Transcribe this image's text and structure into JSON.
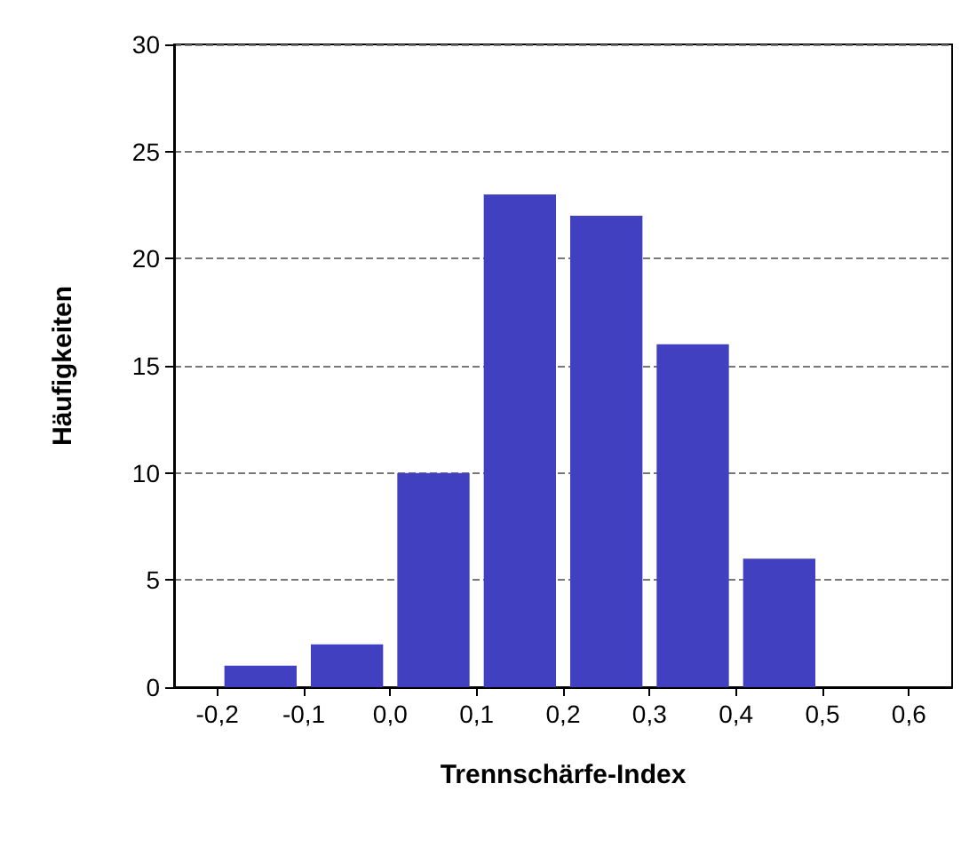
{
  "chart_data": {
    "type": "histogram",
    "xlabel": "Trennschärfe-Index",
    "ylabel": "Häufigkeiten",
    "bins": [
      -0.2,
      -0.1,
      0.0,
      0.1,
      0.2,
      0.3,
      0.4,
      0.5,
      0.6
    ],
    "values": [
      1,
      2,
      10,
      23,
      22,
      16,
      6,
      0
    ],
    "color": "#4040c0",
    "xlim": [
      -0.25,
      0.65
    ],
    "xticks": [
      {
        "value": -0.2,
        "label": "-0,2"
      },
      {
        "value": -0.1,
        "label": "-0,1"
      },
      {
        "value": 0.0,
        "label": "0,0"
      },
      {
        "value": 0.1,
        "label": "0,1"
      },
      {
        "value": 0.2,
        "label": "0,2"
      },
      {
        "value": 0.3,
        "label": "0,3"
      },
      {
        "value": 0.4,
        "label": "0,4"
      },
      {
        "value": 0.5,
        "label": "0,5"
      },
      {
        "value": 0.6,
        "label": "0,6"
      }
    ],
    "ylim": [
      0,
      30
    ],
    "yticks": [
      0,
      5,
      10,
      15,
      20,
      25,
      30
    ],
    "grid": "y"
  }
}
